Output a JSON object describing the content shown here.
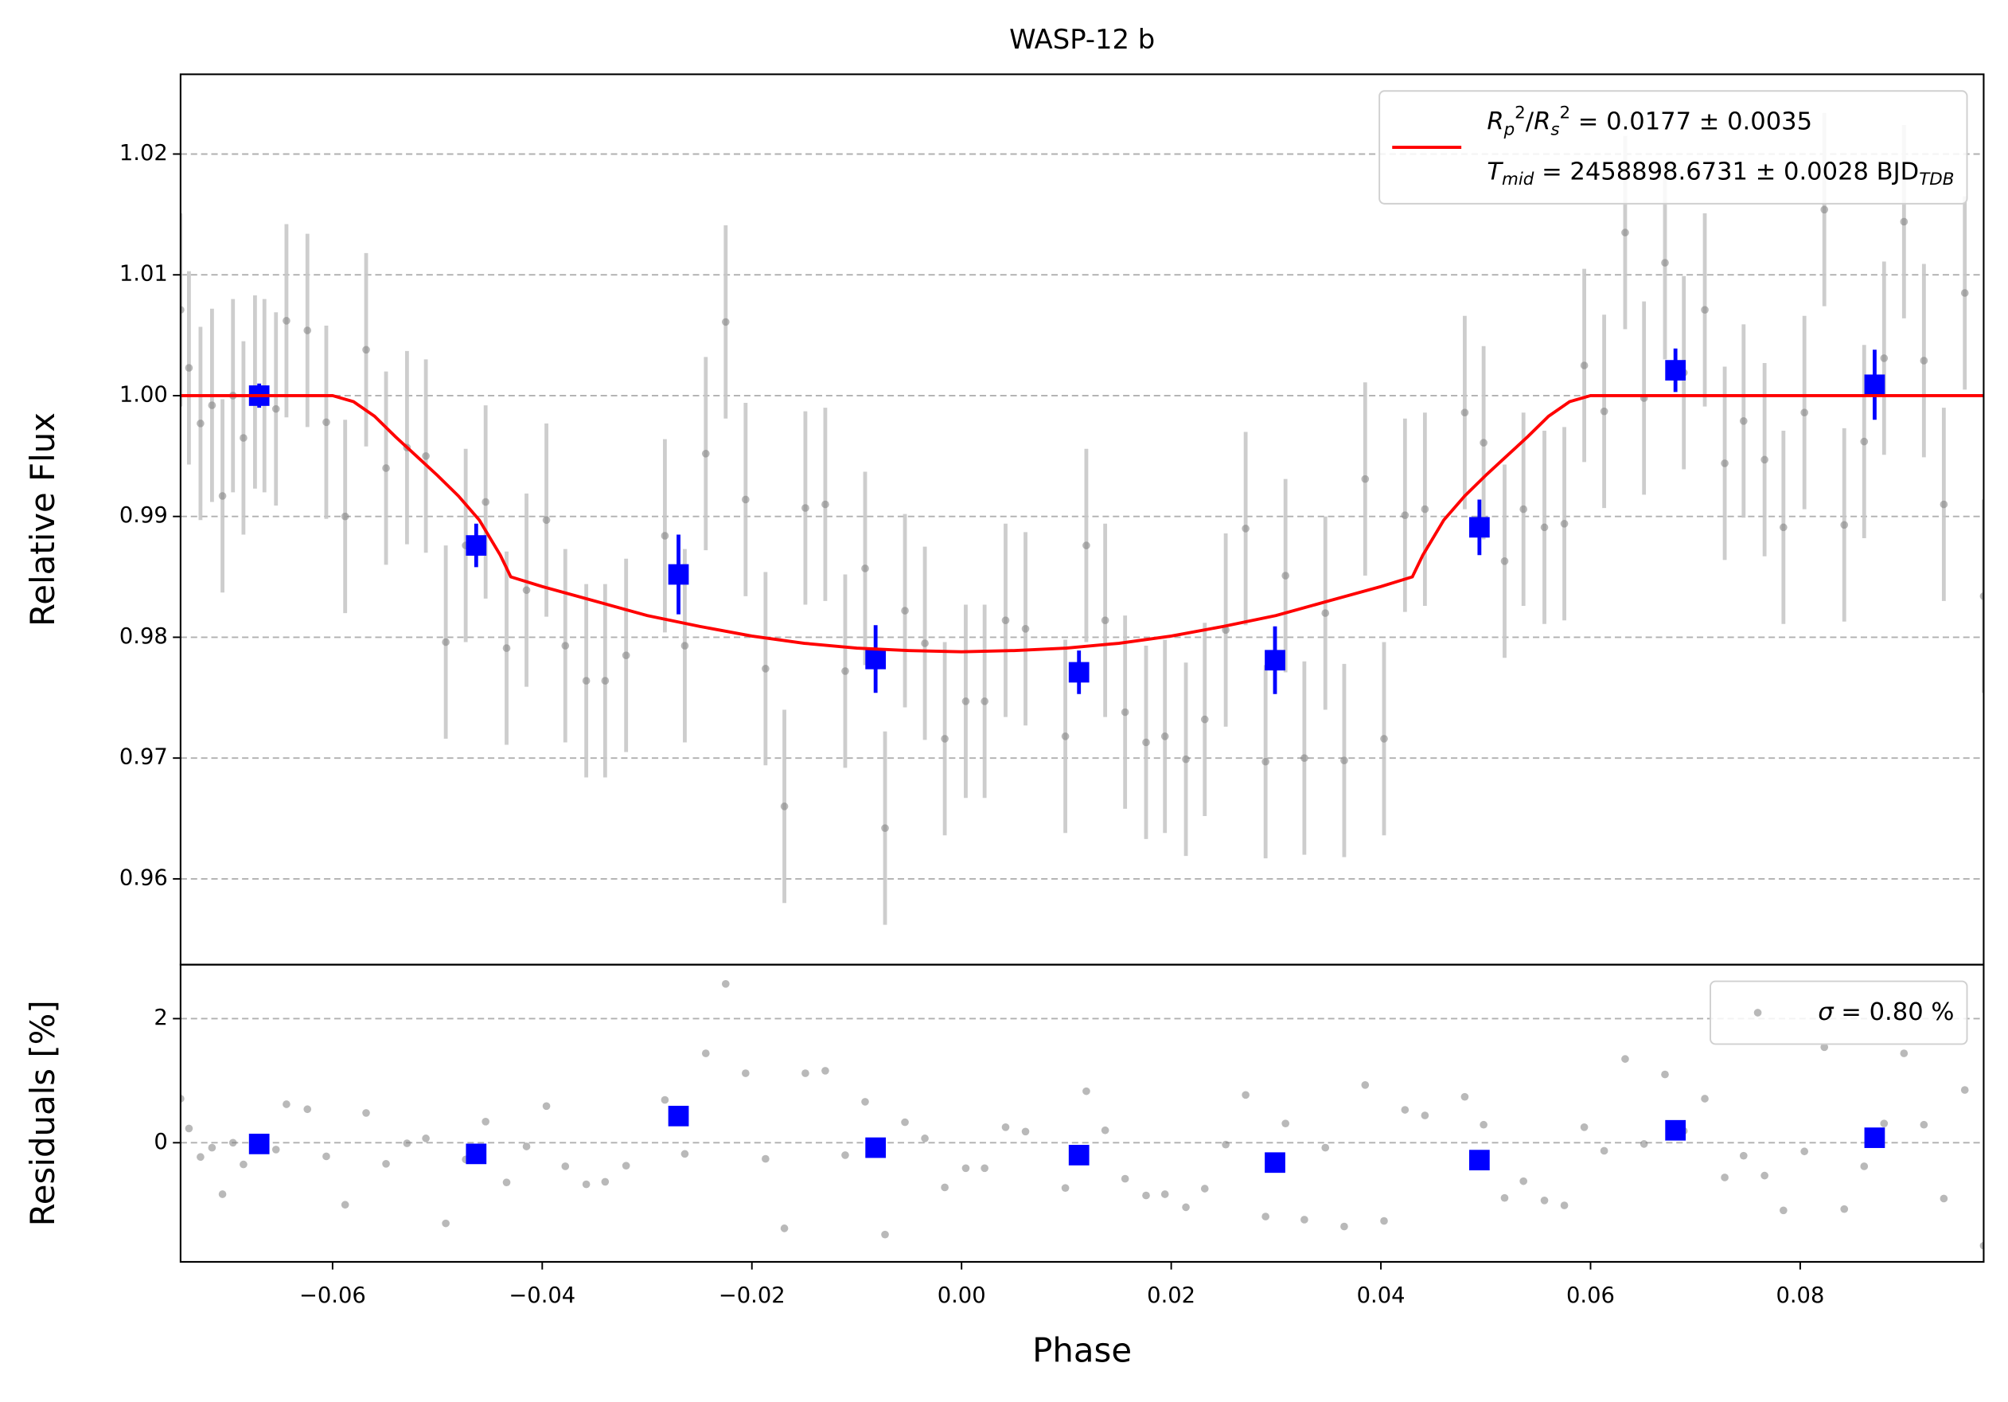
{
  "chart_data": [
    {
      "type": "scatter",
      "title": "WASP-12 b",
      "ylabel": "Relative Flux",
      "xlim": [
        -0.0745,
        0.0975
      ],
      "ylim": [
        0.9529,
        1.0266
      ],
      "yticks": [
        0.96,
        0.97,
        0.98,
        0.99,
        {
          "value": 1,
          "label": "1.00"
        },
        1.01,
        1.02
      ],
      "grid": true,
      "legend": "upper right",
      "series": [
        {
          "marker": "o",
          "color": "#808080",
          "errorcolor": "#c8c8c8",
          "x": [
            -0.0745,
            -0.0737,
            -0.0726,
            -0.0715,
            -0.0705,
            -0.0695,
            -0.0685,
            -0.0674,
            -0.0665,
            -0.0654,
            -0.0644,
            -0.0624,
            -0.0606,
            -0.0588,
            -0.0568,
            -0.0549,
            -0.0529,
            -0.0511,
            -0.0492,
            -0.0473,
            -0.0454,
            -0.0434,
            -0.0415,
            -0.0396,
            -0.0378,
            -0.0358,
            -0.034,
            -0.032,
            -0.0283,
            -0.0264,
            -0.0244,
            -0.0225,
            -0.0206,
            -0.0187,
            -0.0169,
            -0.0149,
            -0.013,
            -0.0111,
            -0.0092,
            -0.0073,
            -0.0054,
            -0.0035,
            -0.0016,
            0.0004,
            0.0022,
            0.0042,
            0.0061,
            0.0099,
            0.0119,
            0.0137,
            0.0156,
            0.0176,
            0.0194,
            0.0214,
            0.0232,
            0.0252,
            0.0271,
            0.029,
            0.0309,
            0.0327,
            0.0347,
            0.0365,
            0.0385,
            0.0403,
            0.0423,
            0.0442,
            0.048,
            0.0498,
            0.0518,
            0.0536,
            0.0556,
            0.0575,
            0.0594,
            0.0613,
            0.0633,
            0.0651,
            0.0671,
            0.0689,
            0.0709,
            0.0728,
            0.0746,
            0.0766,
            0.0784,
            0.0804,
            0.0823,
            0.0842,
            0.0861,
            0.088,
            0.0899,
            0.0918,
            0.0937,
            0.0957,
            0.0975
          ],
          "values": [
            1.0071,
            1.0023,
            0.9977,
            0.9992,
            0.9917,
            1.0,
            0.9965,
            1.0003,
            1.0,
            0.9989,
            1.0062,
            1.0054,
            0.9978,
            0.99,
            1.0038,
            0.994,
            0.9957,
            0.995,
            0.9796,
            0.9876,
            0.9912,
            0.9791,
            0.9839,
            0.9897,
            0.9793,
            0.9764,
            0.9764,
            0.9785,
            0.9884,
            0.9793,
            0.9952,
            1.0061,
            0.9914,
            0.9774,
            0.966,
            0.9907,
            0.991,
            0.9772,
            0.9857,
            0.9642,
            0.9822,
            0.9795,
            0.9716,
            0.9747,
            0.9747,
            0.9814,
            0.9807,
            0.9718,
            0.9876,
            0.9814,
            0.9738,
            0.9713,
            0.9718,
            0.9699,
            0.9732,
            0.9806,
            0.989,
            0.9697,
            0.9851,
            0.97,
            0.982,
            0.9698,
            0.9931,
            0.9716,
            0.9901,
            0.9906,
            0.9986,
            0.9961,
            0.9863,
            0.9906,
            0.9891,
            0.9894,
            1.0025,
            0.9987,
            1.0135,
            0.9998,
            1.011,
            1.0019,
            1.0071,
            0.9944,
            0.9979,
            0.9947,
            0.9891,
            0.9986,
            1.0154,
            0.9893,
            0.9962,
            1.0031,
            1.0144,
            1.0029,
            0.991,
            1.0085,
            0.9834
          ],
          "errors": [
            0.008,
            0.008,
            0.008,
            0.008,
            0.008,
            0.008,
            0.008,
            0.008,
            0.008,
            0.008,
            0.008,
            0.008,
            0.008,
            0.008,
            0.008,
            0.008,
            0.008,
            0.008,
            0.008,
            0.008,
            0.008,
            0.008,
            0.008,
            0.008,
            0.008,
            0.008,
            0.008,
            0.008,
            0.008,
            0.008,
            0.008,
            0.008,
            0.008,
            0.008,
            0.008,
            0.008,
            0.008,
            0.008,
            0.008,
            0.008,
            0.008,
            0.008,
            0.008,
            0.008,
            0.008,
            0.008,
            0.008,
            0.008,
            0.008,
            0.008,
            0.008,
            0.008,
            0.008,
            0.008,
            0.008,
            0.008,
            0.008,
            0.008,
            0.008,
            0.008,
            0.008,
            0.008,
            0.008,
            0.008,
            0.008,
            0.008,
            0.008,
            0.008,
            0.008,
            0.008,
            0.008,
            0.008,
            0.008,
            0.008,
            0.008,
            0.008,
            0.008,
            0.008,
            0.008,
            0.008,
            0.008,
            0.008,
            0.008,
            0.008,
            0.008,
            0.008,
            0.008,
            0.008,
            0.008,
            0.008,
            0.008,
            0.008,
            0.008
          ]
        },
        {
          "marker": "s",
          "color": "#0000ff",
          "x": [
            -0.067,
            -0.0463,
            -0.027,
            -0.0082,
            0.0112,
            0.0299,
            0.0494,
            0.0681,
            0.0871
          ],
          "values": [
            1.0,
            0.9876,
            0.9852,
            0.9782,
            0.9771,
            0.9781,
            0.9891,
            1.0021,
            1.0009
          ],
          "errors": [
            0.001,
            0.0018,
            0.0033,
            0.0028,
            0.0018,
            0.0028,
            0.0023,
            0.0018,
            0.0029
          ]
        },
        {
          "marker": "line",
          "color": "#ff0000",
          "name": [
            "$R_p^2/R_s^2$ = 0.0177 ± 0.0035",
            "$T_{mid}$ = 2458898.6731 ± 0.0028 BJD$_{TDB}$"
          ],
          "x": [
            -0.0745,
            -0.06,
            -0.058,
            -0.056,
            -0.054,
            -0.052,
            -0.05,
            -0.048,
            -0.046,
            -0.044,
            -0.043,
            -0.04,
            -0.035,
            -0.03,
            -0.025,
            -0.02,
            -0.015,
            -0.01,
            -0.005,
            0,
            0.005,
            0.01,
            0.015,
            0.02,
            0.025,
            0.03,
            0.035,
            0.04,
            0.043,
            0.044,
            0.046,
            0.048,
            0.05,
            0.052,
            0.054,
            0.056,
            0.058,
            0.06,
            0.0975
          ],
          "values": [
            1,
            1,
            0.9995,
            0.9983,
            0.9966,
            0.995,
            0.9934,
            0.9917,
            0.9897,
            0.9868,
            0.985,
            0.9842,
            0.983,
            0.9818,
            0.9809,
            0.9801,
            0.9795,
            0.9791,
            0.9789,
            0.9788,
            0.9789,
            0.9791,
            0.9795,
            0.9801,
            0.9809,
            0.9818,
            0.983,
            0.9842,
            0.985,
            0.9868,
            0.9897,
            0.9917,
            0.9934,
            0.995,
            0.9966,
            0.9983,
            0.9995,
            1,
            1
          ]
        }
      ]
    },
    {
      "type": "scatter",
      "ylabel": "Residuals [%]",
      "xlabel": "Phase",
      "xlim": [
        -0.0745,
        0.0975
      ],
      "ylim": [
        -1.92,
        2.87
      ],
      "xticks": [
        {
          "value": -0.06,
          "label": "−0.06"
        },
        {
          "value": -0.04,
          "label": "−0.04"
        },
        {
          "value": -0.02,
          "label": "−0.02"
        },
        {
          "value": 0,
          "label": "0.00"
        },
        0.02,
        0.04,
        0.06,
        0.08
      ],
      "yticks": [
        0,
        2
      ],
      "grid": true,
      "legend": "upper right",
      "series": [
        {
          "marker": "o",
          "color": "#808080",
          "name": "$\\sigma$ = 0.80 %",
          "x": [
            -0.0745,
            -0.0737,
            -0.0726,
            -0.0715,
            -0.0705,
            -0.0695,
            -0.0685,
            -0.0674,
            -0.0665,
            -0.0654,
            -0.0644,
            -0.0624,
            -0.0606,
            -0.0588,
            -0.0568,
            -0.0549,
            -0.0529,
            -0.0511,
            -0.0492,
            -0.0473,
            -0.0454,
            -0.0434,
            -0.0415,
            -0.0396,
            -0.0378,
            -0.0358,
            -0.034,
            -0.032,
            -0.0283,
            -0.0264,
            -0.0244,
            -0.0225,
            -0.0206,
            -0.0187,
            -0.0169,
            -0.0149,
            -0.013,
            -0.0111,
            -0.0092,
            -0.0073,
            -0.0054,
            -0.0035,
            -0.0016,
            0.0004,
            0.0022,
            0.0042,
            0.0061,
            0.0099,
            0.0119,
            0.0137,
            0.0156,
            0.0176,
            0.0194,
            0.0214,
            0.0232,
            0.0252,
            0.0271,
            0.029,
            0.0309,
            0.0327,
            0.0347,
            0.0365,
            0.0385,
            0.0403,
            0.0423,
            0.0442,
            0.048,
            0.0498,
            0.0518,
            0.0536,
            0.0556,
            0.0575,
            0.0594,
            0.0613,
            0.0633,
            0.0651,
            0.0671,
            0.0689,
            0.0709,
            0.0728,
            0.0746,
            0.0766,
            0.0784,
            0.0804,
            0.0823,
            0.0842,
            0.0861,
            0.088,
            0.0899,
            0.0918,
            0.0937,
            0.0957,
            0.0975
          ],
          "values": [
            0.71,
            0.23,
            -0.23,
            -0.08,
            -0.83,
            0.0,
            -0.35,
            0.03,
            0.0,
            -0.11,
            0.62,
            0.54,
            -0.22,
            -1.0,
            0.48,
            -0.34,
            -0.01,
            0.07,
            -1.3,
            -0.27,
            0.34,
            -0.64,
            -0.06,
            0.59,
            -0.38,
            -0.67,
            -0.63,
            -0.37,
            0.69,
            -0.18,
            1.44,
            2.56,
            1.12,
            -0.26,
            -1.38,
            1.12,
            1.16,
            -0.2,
            0.66,
            -1.48,
            0.33,
            0.07,
            -0.72,
            -0.41,
            -0.41,
            0.25,
            0.18,
            -0.73,
            0.83,
            0.2,
            -0.58,
            -0.85,
            -0.83,
            -1.04,
            -0.74,
            -0.03,
            0.77,
            -1.19,
            0.31,
            -1.24,
            -0.08,
            -1.35,
            0.93,
            -1.26,
            0.53,
            0.44,
            0.74,
            0.29,
            -0.89,
            -0.62,
            -0.93,
            -1.01,
            0.25,
            -0.13,
            1.35,
            -0.02,
            1.1,
            0.19,
            0.71,
            -0.56,
            -0.21,
            -0.53,
            -1.09,
            -0.14,
            1.54,
            -1.07,
            -0.38,
            0.31,
            1.44,
            0.29,
            -0.9,
            0.85,
            -1.66
          ]
        },
        {
          "marker": "s",
          "color": "#0000ff",
          "x": [
            -0.067,
            -0.0463,
            -0.027,
            -0.0082,
            0.0112,
            0.0299,
            0.0494,
            0.0681,
            0.0871
          ],
          "values": [
            -0.02,
            -0.18,
            0.43,
            -0.08,
            -0.2,
            -0.32,
            -0.28,
            0.2,
            0.08
          ]
        }
      ]
    }
  ]
}
